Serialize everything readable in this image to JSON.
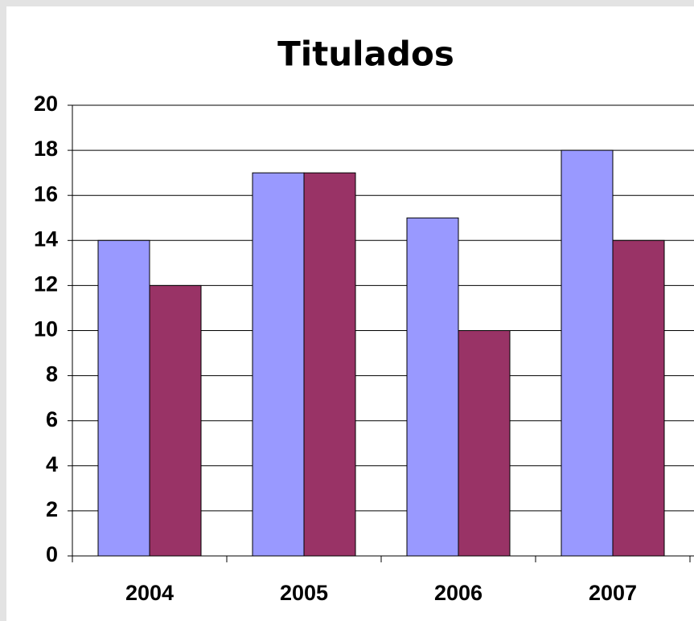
{
  "chart_data": {
    "type": "bar",
    "title": "Titulados",
    "categories": [
      "2004",
      "2005",
      "2006",
      "2007"
    ],
    "series": [
      {
        "color": "#9999ff",
        "values": [
          14,
          17,
          15,
          18
        ]
      },
      {
        "color": "#993366",
        "values": [
          12,
          17,
          10,
          14
        ]
      }
    ],
    "ylim": [
      0,
      20
    ],
    "yticks": [
      0,
      2,
      4,
      6,
      8,
      10,
      12,
      14,
      16,
      18,
      20
    ],
    "grid": true
  }
}
